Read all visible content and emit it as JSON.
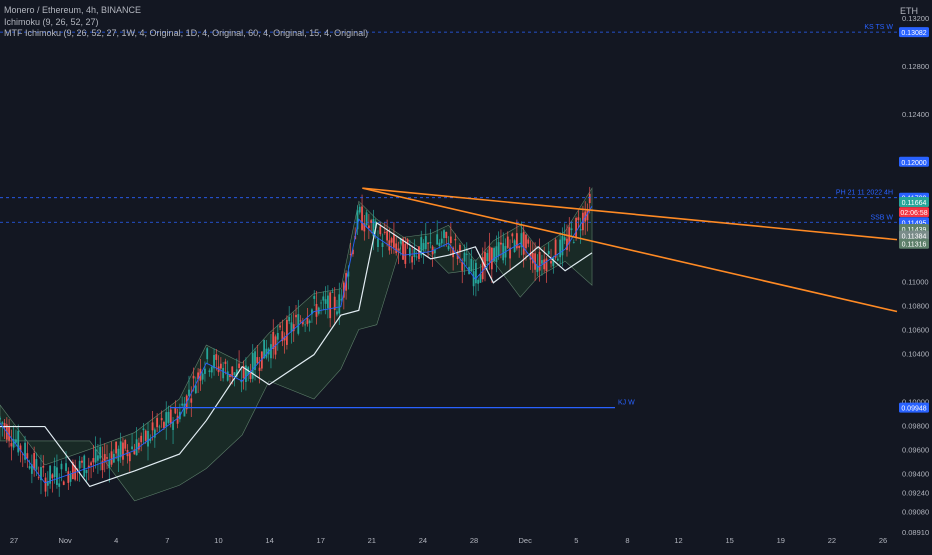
{
  "header": {
    "symbol_line": "Monero / Ethereum, 4h, BINANCE",
    "indicator_1": "Ichimoku (9, 26, 52, 27)",
    "indicator_2": "MTF Ichimoku (9, 26, 52, 27, 1W, 4, Original, 1D, 4, Original, 60, 4, Original, 15, 4, Original)",
    "currency": "ETH"
  },
  "chart_data": {
    "type": "line",
    "x_tick_labels": [
      "27",
      "Nov",
      "4",
      "7",
      "10",
      "14",
      "17",
      "21",
      "24",
      "28",
      "Dec",
      "5",
      "8",
      "12",
      "15",
      "19",
      "22",
      "26"
    ],
    "y_tick_labels": [
      "0.13200",
      "0.12800",
      "0.12400",
      "0.12000",
      "0.11600",
      "0.11000",
      "0.10800",
      "0.10600",
      "0.10400",
      "0.10000",
      "0.09800",
      "0.09600",
      "0.09400",
      "0.09240",
      "0.09080",
      "0.08910"
    ],
    "ylim": [
      0.0891,
      0.1335
    ],
    "price_labels": [
      {
        "value": 0.13082,
        "text": "0.13082",
        "color": "#2962ff"
      },
      {
        "value": 0.12,
        "text": "0.12000",
        "color": "#2962ff"
      },
      {
        "value": 0.117,
        "text": "0.11700",
        "color": "#2962ff"
      },
      {
        "value": 0.11664,
        "text": "0.11664",
        "color": "#f23645"
      },
      {
        "value": 0.1158,
        "text": "02:06:58",
        "color": "#f23645"
      },
      {
        "value": 0.11664,
        "text": "0.11664",
        "color": "#26a69a"
      },
      {
        "value": 0.11495,
        "text": "0.11495",
        "color": "#2962ff"
      },
      {
        "value": 0.11439,
        "text": "0.11439",
        "color": "#5d7f6a"
      },
      {
        "value": 0.11384,
        "text": "0.11384",
        "color": "#7a8c8a"
      },
      {
        "value": 0.11316,
        "text": "0.11316",
        "color": "#5d7f6a"
      },
      {
        "value": 0.09948,
        "text": "0.09948",
        "color": "#2962ff"
      }
    ],
    "level_lines": [
      {
        "label": "KS TS W",
        "value": 0.13082
      },
      {
        "label": "PH 21 11 2022 4H",
        "value": 0.117
      },
      {
        "label": "SSB W",
        "value": 0.11495
      },
      {
        "label": "KJ W",
        "value": 0.09948
      }
    ],
    "trendlines": [
      {
        "name": "upper",
        "points": [
          [
            0.404,
            0.1178
          ],
          [
            1.0,
            0.1135
          ]
        ]
      },
      {
        "name": "lower",
        "points": [
          [
            0.404,
            0.1178
          ],
          [
            1.0,
            0.1075
          ]
        ]
      }
    ],
    "price_series": {
      "x": [
        0.0,
        0.05,
        0.1,
        0.15,
        0.2,
        0.23,
        0.27,
        0.3,
        0.35,
        0.38,
        0.4,
        0.42,
        0.45,
        0.48,
        0.5,
        0.53,
        0.55,
        0.58,
        0.6,
        0.63,
        0.66
      ],
      "close": [
        0.0985,
        0.0935,
        0.0948,
        0.0962,
        0.099,
        0.1035,
        0.102,
        0.1045,
        0.1078,
        0.1082,
        0.1155,
        0.114,
        0.1125,
        0.1128,
        0.1135,
        0.1105,
        0.1122,
        0.1135,
        0.1115,
        0.113,
        0.1166
      ]
    }
  }
}
